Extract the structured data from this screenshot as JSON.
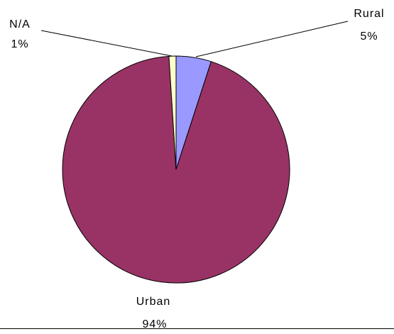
{
  "chart_data": {
    "type": "pie",
    "slices": [
      {
        "label": "Rural",
        "value": 5,
        "value_label": "5%",
        "color": "#9999ff"
      },
      {
        "label": "Urban",
        "value": 94,
        "value_label": "94%",
        "color": "#993366"
      },
      {
        "label": "N/A",
        "value": 1,
        "value_label": "1%",
        "color": "#ffffcc"
      }
    ],
    "start_angle": "12 o'clock",
    "direction": "clockwise",
    "legend": "none",
    "data_labels": "outside with leader lines"
  }
}
